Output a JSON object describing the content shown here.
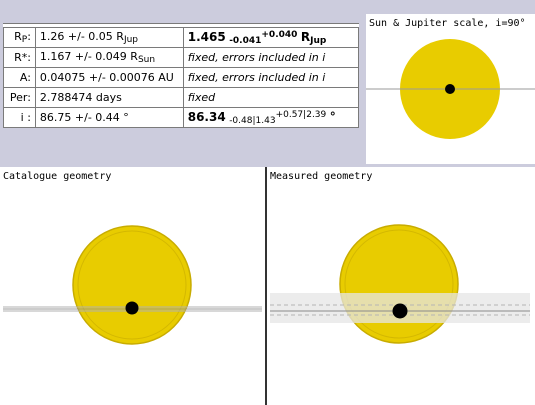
{
  "params": {
    "rows": [
      {
        "label_main": "R",
        "label_sub": "P",
        "label_tail": ":",
        "catalogue": "1.26 +/- 0.05 R",
        "catalogue_sub": "Jup",
        "fit_main": "1.465",
        "fit_minus": "-0.041",
        "fit_plus": "+0.040",
        "fit_unit": "R",
        "fit_unit_sub": "Jup"
      },
      {
        "label": "R*:",
        "catalogue": "1.167 +/- 0.049 R",
        "catalogue_sub": "Sun",
        "note": "fixed, errors included in i"
      },
      {
        "label": "A:",
        "catalogue": "0.04075 +/- 0.00076 AU",
        "note": "fixed, errors included in i"
      },
      {
        "label": "Per:",
        "catalogue": "2.788474 days",
        "note": "fixed"
      },
      {
        "label": "i :",
        "catalogue": "86.75 +/- 0.44 °",
        "fit_main": "86.34",
        "fit_minus": "-0.48",
        "fit_minus2": "1.43",
        "fit_plus": "+0.57",
        "fit_plus2": "2.39",
        "fit_unit": "°"
      }
    ]
  },
  "panels": {
    "sun": {
      "title": "Sun & Jupiter scale, i=90°"
    },
    "catalogue": {
      "title": "Catalogue geometry"
    },
    "measured": {
      "title": "Measured geometry"
    }
  },
  "colors": {
    "star": "#e8cc00",
    "star_edge": "#c8ac00",
    "planet": "#000000",
    "path": "#9a9a9a",
    "band": "#e6e6e6"
  }
}
